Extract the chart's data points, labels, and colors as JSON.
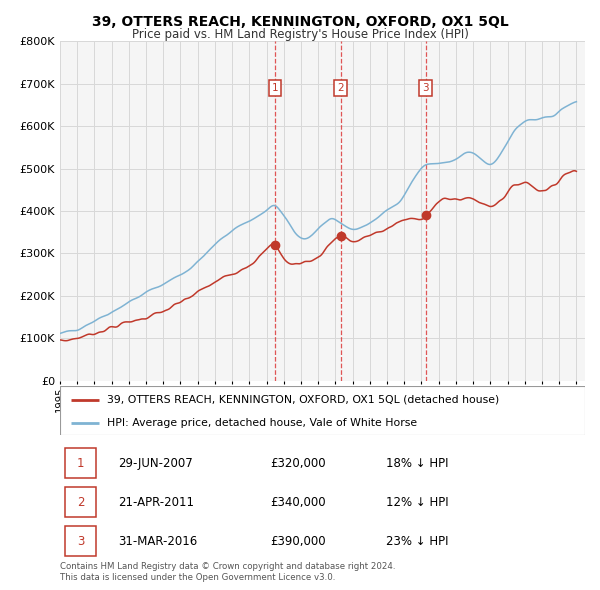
{
  "title": "39, OTTERS REACH, KENNINGTON, OXFORD, OX1 5QL",
  "subtitle": "Price paid vs. HM Land Registry's House Price Index (HPI)",
  "ylim": [
    0,
    800000
  ],
  "yticks": [
    0,
    100000,
    200000,
    300000,
    400000,
    500000,
    600000,
    700000,
    800000
  ],
  "ytick_labels": [
    "£0",
    "£100K",
    "£200K",
    "£300K",
    "£400K",
    "£500K",
    "£600K",
    "£700K",
    "£800K"
  ],
  "xlim_start": 1995.0,
  "xlim_end": 2025.5,
  "xticks": [
    1995,
    1996,
    1997,
    1998,
    1999,
    2000,
    2001,
    2002,
    2003,
    2004,
    2005,
    2006,
    2007,
    2008,
    2009,
    2010,
    2011,
    2012,
    2013,
    2014,
    2015,
    2016,
    2017,
    2018,
    2019,
    2020,
    2021,
    2022,
    2023,
    2024,
    2025
  ],
  "hpi_color": "#7fb3d3",
  "price_color": "#c0392b",
  "vline_color": "#d44",
  "marker_color": "#c0392b",
  "grid_color": "#d8d8d8",
  "background_color": "#ffffff",
  "plot_bg_color": "#f5f5f5",
  "legend_box_color": "#c0392b",
  "transactions": [
    {
      "label": "1",
      "date": 2007.49,
      "price": 320000,
      "text_date": "29-JUN-2007",
      "text_price": "£320,000",
      "text_pct": "18% ↓ HPI"
    },
    {
      "label": "2",
      "date": 2011.3,
      "price": 340000,
      "text_date": "21-APR-2011",
      "text_price": "£340,000",
      "text_pct": "12% ↓ HPI"
    },
    {
      "label": "3",
      "date": 2016.24,
      "price": 390000,
      "text_date": "31-MAR-2016",
      "text_price": "£390,000",
      "text_pct": "23% ↓ HPI"
    }
  ],
  "legend_line1": "39, OTTERS REACH, KENNINGTON, OXFORD, OX1 5QL (detached house)",
  "legend_line2": "HPI: Average price, detached house, Vale of White Horse",
  "footer1": "Contains HM Land Registry data © Crown copyright and database right 2024.",
  "footer2": "This data is licensed under the Open Government Licence v3.0."
}
